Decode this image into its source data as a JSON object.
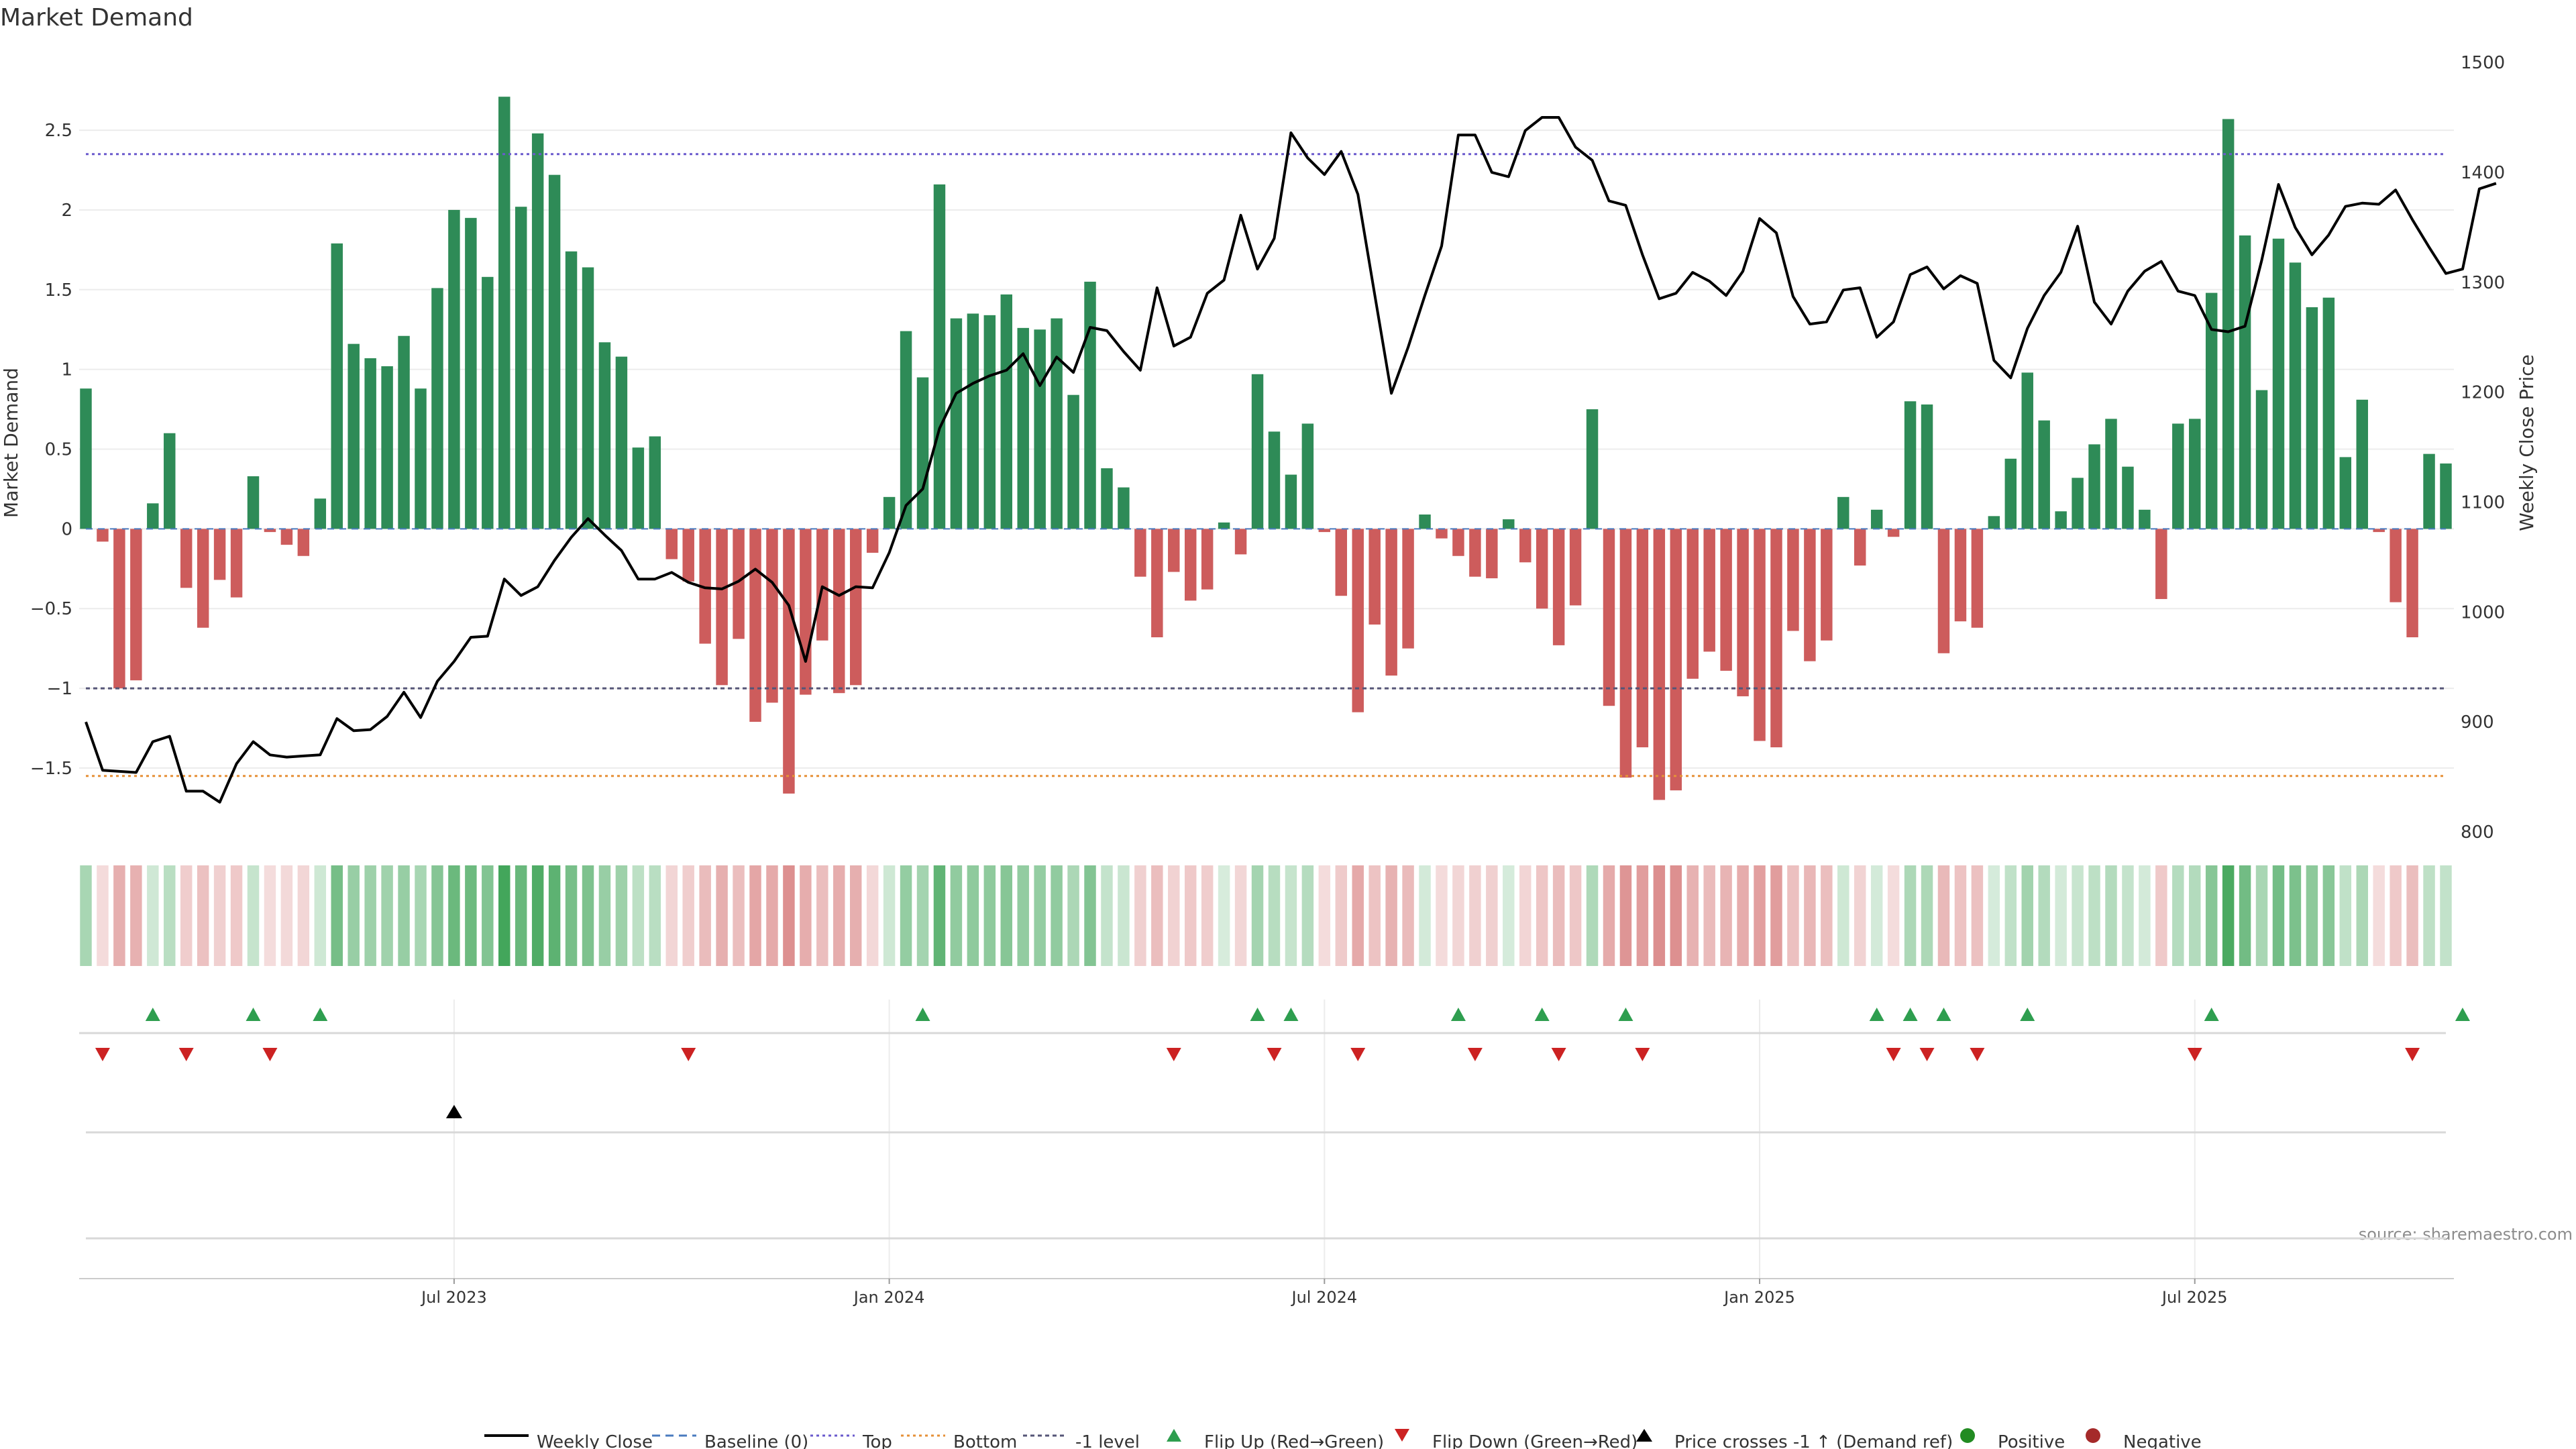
{
  "chart_data": {
    "type": "bar",
    "title": "Market Demand",
    "ylabel": "Market Demand",
    "y2label": "Weekly Close Price",
    "source": "source: sharemaestro.com",
    "ylim": [
      -1.9,
      2.98
    ],
    "y2lim": [
      800,
      1508
    ],
    "yticks": [
      -1.5,
      -1,
      -0.5,
      0,
      0.5,
      1,
      1.5,
      2,
      2.5
    ],
    "ytick_labels": [
      "−1.5",
      "−1",
      "−0.5",
      "0",
      "0.5",
      "1",
      "1.5",
      "2",
      "2.5"
    ],
    "y2ticks": [
      800,
      900,
      1000,
      1100,
      1200,
      1300,
      1400,
      1500
    ],
    "y2tick_labels": [
      "800",
      "900",
      "1000",
      "1100",
      "1200",
      "1300",
      "1400",
      "1500"
    ],
    "xticks": [
      22,
      48,
      74,
      100,
      126
    ],
    "xtick_labels": [
      "Jul 2023",
      "Jan 2024",
      "Jul 2024",
      "Jan 2025",
      "Jul 2025"
    ],
    "reference_lines": {
      "top": 2.35,
      "bottom": -1.55,
      "minus_one": -1.0,
      "baseline": 0
    },
    "colors": {
      "positive": "#2e8b57",
      "negative": "#cd5c5c",
      "price": "#000000",
      "top": "#6a5acd",
      "bottom": "#e69138",
      "minus_one": "#555577",
      "flip_up": "#2e9e4f",
      "flip_down": "#cc2222",
      "cross": "#000000"
    },
    "demand": [
      0.88,
      -0.08,
      -1.0,
      -0.95,
      0.16,
      0.6,
      -0.37,
      -0.62,
      -0.32,
      -0.43,
      0.33,
      -0.02,
      -0.1,
      -0.17,
      0.19,
      1.79,
      1.16,
      1.07,
      1.02,
      1.21,
      0.88,
      1.51,
      2.0,
      1.95,
      1.58,
      2.71,
      2.02,
      2.48,
      2.22,
      1.74,
      1.64,
      1.17,
      1.08,
      0.51,
      0.58,
      -0.19,
      -0.33,
      -0.72,
      -0.98,
      -0.69,
      -1.21,
      -1.09,
      -1.66,
      -1.04,
      -0.7,
      -1.03,
      -0.98,
      -0.15,
      0.2,
      1.24,
      0.95,
      2.16,
      1.32,
      1.35,
      1.34,
      1.47,
      1.26,
      1.25,
      1.32,
      0.84,
      1.55,
      0.38,
      0.26,
      -0.3,
      -0.68,
      -0.27,
      -0.45,
      -0.38,
      0.04,
      -0.16,
      0.97,
      0.61,
      0.34,
      0.66,
      -0.02,
      -0.42,
      -1.15,
      -0.6,
      -0.92,
      -0.75,
      0.09,
      -0.06,
      -0.17,
      -0.3,
      -0.31,
      0.06,
      -0.21,
      -0.5,
      -0.73,
      -0.48,
      0.75,
      -1.11,
      -1.56,
      -1.37,
      -1.7,
      -1.64,
      -0.94,
      -0.77,
      -0.89,
      -1.05,
      -1.33,
      -1.37,
      -0.64,
      -0.83,
      -0.7,
      0.2,
      -0.23,
      0.12,
      -0.05,
      0.8,
      0.78,
      -0.78,
      -0.58,
      -0.62,
      0.08,
      0.44,
      0.98,
      0.68,
      0.11,
      0.32,
      0.53,
      0.69,
      0.39,
      0.12,
      -0.44,
      0.66,
      0.69,
      1.48,
      2.57,
      1.84,
      0.87,
      1.82,
      1.67,
      1.39,
      1.45,
      0.45,
      0.81,
      -0.02,
      -0.46,
      -0.68,
      0.47,
      0.41
    ],
    "price": [
      900,
      856,
      855,
      854,
      882,
      887,
      837,
      837,
      827,
      862,
      882,
      870,
      868,
      869,
      870,
      903,
      892,
      893,
      905,
      927,
      904,
      937,
      955,
      977,
      978,
      1030,
      1015,
      1023,
      1047,
      1068,
      1085,
      1070,
      1056,
      1030,
      1030,
      1036,
      1027,
      1022,
      1021,
      1028,
      1039,
      1027,
      1006,
      955,
      1023,
      1015,
      1023,
      1022,
      1054,
      1097,
      1112,
      1167,
      1199,
      1208,
      1215,
      1220,
      1235,
      1206,
      1232,
      1218,
      1259,
      1256,
      1237,
      1220,
      1295,
      1242,
      1250,
      1290,
      1302,
      1361,
      1312,
      1340,
      1436,
      1413,
      1398,
      1419,
      1380,
      1289,
      1199,
      1241,
      1288,
      1333,
      1434,
      1434,
      1400,
      1396,
      1438,
      1450,
      1450,
      1423,
      1411,
      1374,
      1370,
      1325,
      1285,
      1290,
      1309,
      1301,
      1288,
      1310,
      1358,
      1345,
      1287,
      1262,
      1264,
      1293,
      1295,
      1250,
      1264,
      1307,
      1314,
      1294,
      1306,
      1299,
      1229,
      1213,
      1258,
      1288,
      1309,
      1351,
      1282,
      1262,
      1292,
      1310,
      1319,
      1292,
      1288,
      1257,
      1255,
      1260,
      1320,
      1389,
      1350,
      1325,
      1343,
      1369,
      1372,
      1371,
      1384,
      1357,
      1332,
      1308,
      1312,
      1385,
      1390
    ],
    "flip_up": [
      4,
      10,
      14,
      50,
      70,
      72,
      82,
      87,
      92,
      107,
      109,
      111,
      116,
      127,
      142
    ],
    "flip_down": [
      1,
      6,
      11,
      36,
      65,
      71,
      76,
      83,
      88,
      93,
      108,
      110,
      113,
      126,
      139
    ],
    "price_cross": [
      22
    ],
    "legend": {
      "placement": "bottom",
      "entries": [
        "Weekly Close",
        "Baseline (0)",
        "Top",
        "Bottom",
        "-1 level",
        "Flip Up (Red→Green)",
        "Flip Down (Green→Red)",
        "Price crosses -1 ↑ (Demand ref)",
        "Positive",
        "Negative"
      ]
    }
  }
}
